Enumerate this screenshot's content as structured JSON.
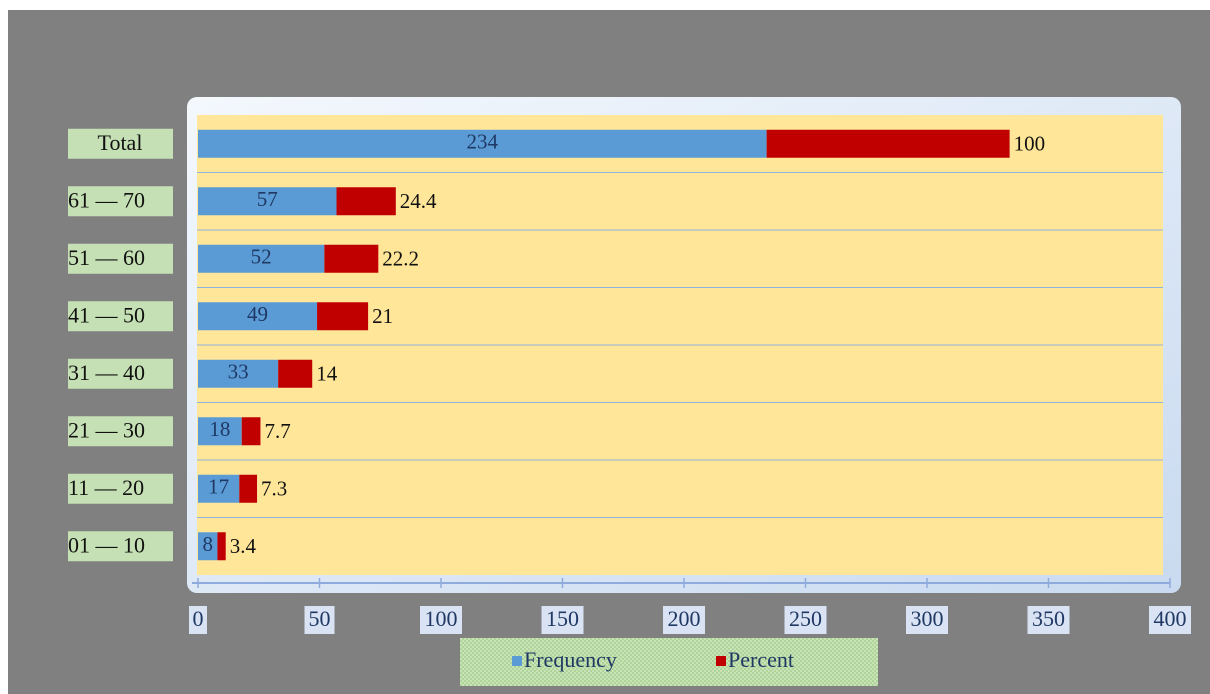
{
  "chart_data": {
    "type": "bar",
    "orientation": "horizontal",
    "stacked": true,
    "categories": [
      "Total",
      "61 — 70",
      "51 — 60",
      "41 — 50",
      "31 — 40",
      "21 — 30",
      "11 — 20",
      "01 — 10"
    ],
    "series": [
      {
        "name": "Frequency",
        "color": "#5b9bd5",
        "values": [
          234,
          57,
          52,
          49,
          33,
          18,
          17,
          8
        ]
      },
      {
        "name": "Percent",
        "color": "#c00000",
        "values": [
          100,
          24.4,
          22.2,
          21,
          14,
          7.7,
          7.3,
          3.4
        ]
      }
    ],
    "xlim": [
      0,
      400
    ],
    "xticks": [
      0,
      50,
      100,
      150,
      200,
      250,
      300,
      350,
      400
    ],
    "legend": "bottom"
  }
}
